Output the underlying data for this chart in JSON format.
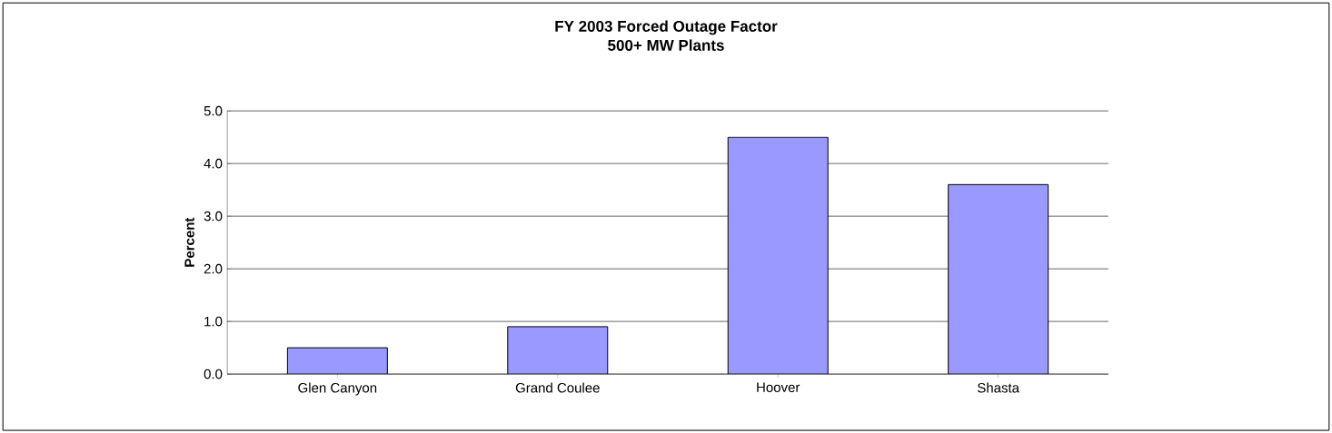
{
  "chart_data": {
    "type": "bar",
    "title": "FY 2003 Forced Outage Factor\n500+ MW Plants",
    "ylabel": "Percent",
    "categories": [
      "Glen Canyon",
      "Grand Coulee",
      "Hoover",
      "Shasta"
    ],
    "values": [
      0.5,
      0.9,
      4.5,
      3.6
    ],
    "color": "#9999ff",
    "ylim": [
      0,
      5
    ],
    "yticks": [
      {
        "value": 0,
        "label": "0.0"
      },
      {
        "value": 1,
        "label": "1.0"
      },
      {
        "value": 2,
        "label": "2.0"
      },
      {
        "value": 3,
        "label": "3.0"
      },
      {
        "value": 4,
        "label": "4.0"
      },
      {
        "value": 5,
        "label": "5.0"
      }
    ],
    "grid": "y"
  }
}
